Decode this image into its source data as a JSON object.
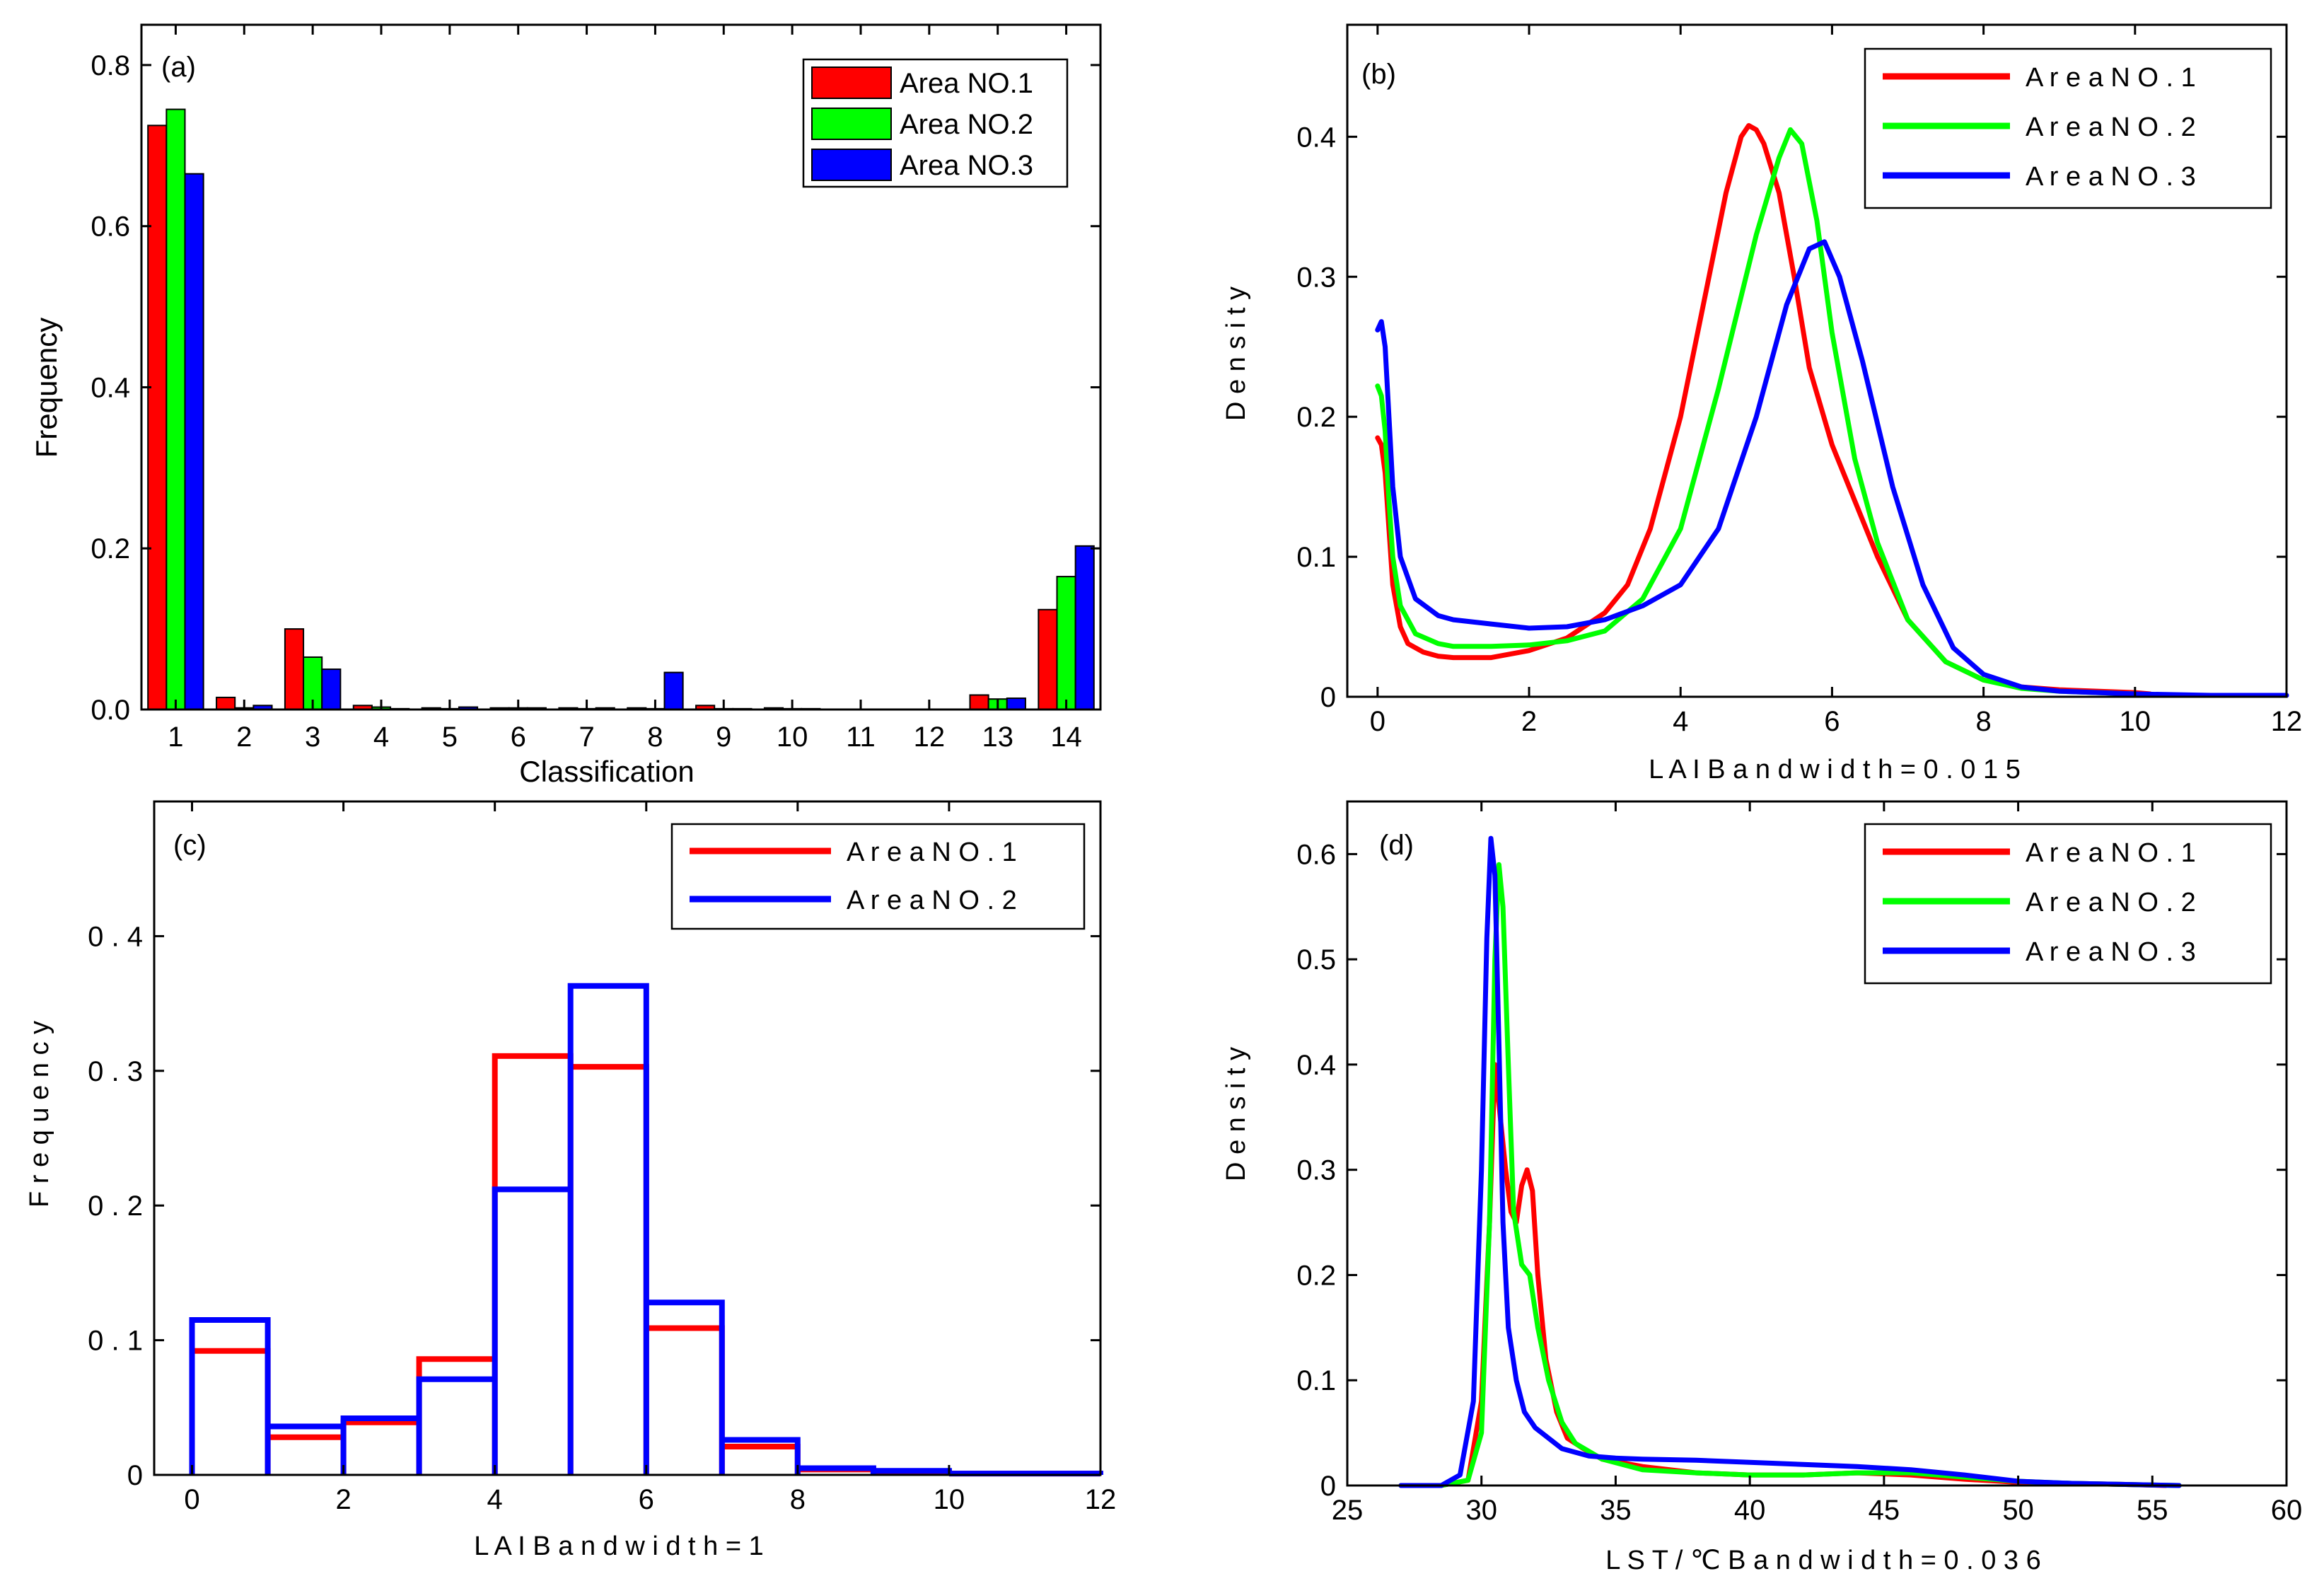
{
  "chart_data": [
    {
      "panel_label": "(a)",
      "type": "bar",
      "xlabel": "Classification",
      "ylabel": "Frequency",
      "categories": [
        "1",
        "2",
        "3",
        "4",
        "5",
        "6",
        "7",
        "8",
        "9",
        "10",
        "11",
        "12",
        "13",
        "14"
      ],
      "ylim": [
        0,
        0.85
      ],
      "yticks": [
        0.0,
        0.2,
        0.4,
        0.6,
        0.8
      ],
      "ytick_labels": [
        "0.0",
        "0.2",
        "0.4",
        "0.6",
        "0.8"
      ],
      "series": [
        {
          "name": "Area NO.1",
          "color": "#ff0000",
          "values": [
            0.725,
            0.015,
            0.1,
            0.005,
            0.002,
            0.002,
            0.002,
            0.002,
            0.005,
            0.002,
            0.0,
            0.0,
            0.018,
            0.124
          ]
        },
        {
          "name": "Area NO.2",
          "color": "#00ff00",
          "values": [
            0.745,
            0.002,
            0.065,
            0.003,
            0.001,
            0.002,
            0.001,
            0.001,
            0.001,
            0.001,
            0.0,
            0.0,
            0.013,
            0.165
          ]
        },
        {
          "name": "Area NO.3",
          "color": "#0000ff",
          "values": [
            0.665,
            0.005,
            0.05,
            0.001,
            0.003,
            0.002,
            0.002,
            0.046,
            0.001,
            0.001,
            0.0,
            0.0,
            0.014,
            0.203
          ]
        }
      ],
      "legend": "top-right"
    },
    {
      "panel_label": "(b)",
      "type": "line",
      "xlabel": "L A I  B a n d w i d t h = 0 . 0 1 5",
      "ylabel": "D e n s i t y",
      "xlim": [
        -0.4,
        12
      ],
      "ylim": [
        0,
        0.48
      ],
      "xticks": [
        0,
        2,
        4,
        6,
        8,
        10,
        12
      ],
      "yticks": [
        0,
        0.1,
        0.2,
        0.3,
        0.4
      ],
      "ytick_labels": [
        "0",
        "0.1",
        "0.2",
        "0.3",
        "0.4"
      ],
      "series": [
        {
          "name": "A r e a  N O . 1",
          "color": "#ff0000",
          "x": [
            0,
            0.05,
            0.1,
            0.15,
            0.2,
            0.3,
            0.4,
            0.6,
            0.8,
            1,
            1.5,
            2,
            2.5,
            3,
            3.3,
            3.6,
            4,
            4.3,
            4.6,
            4.8,
            4.9,
            5.0,
            5.1,
            5.3,
            5.5,
            5.7,
            6,
            6.3,
            6.6,
            7,
            7.5,
            8,
            8.5,
            9,
            10,
            10.2
          ],
          "y": [
            0.185,
            0.18,
            0.16,
            0.12,
            0.08,
            0.05,
            0.038,
            0.032,
            0.029,
            0.028,
            0.028,
            0.033,
            0.042,
            0.06,
            0.08,
            0.12,
            0.2,
            0.28,
            0.36,
            0.4,
            0.408,
            0.405,
            0.395,
            0.36,
            0.3,
            0.235,
            0.18,
            0.14,
            0.1,
            0.055,
            0.025,
            0.012,
            0.007,
            0.005,
            0.003,
            0.002
          ]
        },
        {
          "name": "A r e a  N O . 2",
          "color": "#00ff00",
          "x": [
            0,
            0.05,
            0.1,
            0.15,
            0.2,
            0.3,
            0.5,
            0.8,
            1,
            1.5,
            2,
            2.5,
            3,
            3.5,
            4,
            4.5,
            5,
            5.3,
            5.45,
            5.6,
            5.8,
            6,
            6.3,
            6.6,
            7,
            7.5,
            8,
            8.5,
            9,
            10
          ],
          "y": [
            0.222,
            0.215,
            0.19,
            0.14,
            0.1,
            0.065,
            0.045,
            0.038,
            0.036,
            0.036,
            0.037,
            0.04,
            0.047,
            0.07,
            0.12,
            0.22,
            0.33,
            0.385,
            0.405,
            0.395,
            0.34,
            0.26,
            0.17,
            0.11,
            0.055,
            0.025,
            0.012,
            0.006,
            0.004,
            0.002
          ]
        },
        {
          "name": "A r e a  N O . 3",
          "color": "#0000ff",
          "x": [
            0,
            0.05,
            0.1,
            0.15,
            0.2,
            0.3,
            0.5,
            0.8,
            1,
            1.5,
            2,
            2.5,
            3,
            3.5,
            4,
            4.5,
            5,
            5.4,
            5.7,
            5.9,
            6.1,
            6.4,
            6.8,
            7.2,
            7.6,
            8,
            8.5,
            9,
            10,
            11,
            12
          ],
          "y": [
            0.262,
            0.268,
            0.25,
            0.2,
            0.15,
            0.1,
            0.07,
            0.058,
            0.055,
            0.052,
            0.049,
            0.05,
            0.055,
            0.065,
            0.08,
            0.12,
            0.2,
            0.28,
            0.32,
            0.325,
            0.3,
            0.24,
            0.15,
            0.08,
            0.035,
            0.016,
            0.007,
            0.004,
            0.002,
            0.001,
            0.001
          ]
        }
      ],
      "legend": "top-right"
    },
    {
      "panel_label": "(c)",
      "type": "histogram",
      "xlabel": "L A I  B a n d w i d t h = 1",
      "ylabel": "F r e q u e n c y",
      "xlim": [
        -0.5,
        12
      ],
      "ylim": [
        0,
        0.5
      ],
      "xticks": [
        0,
        2,
        4,
        6,
        8,
        10,
        12
      ],
      "yticks": [
        0,
        0.1,
        0.2,
        0.3,
        0.4
      ],
      "ytick_labels": [
        "0",
        "0 . 1",
        "0 . 2",
        "0 . 3",
        "0 . 4"
      ],
      "bin_edges": [
        0,
        1,
        2,
        3,
        4,
        5,
        6,
        7,
        8,
        9,
        10,
        11,
        12
      ],
      "series": [
        {
          "name": "A r e a  N O . 1",
          "color": "#ff0000",
          "values": [
            0.092,
            0.028,
            0.039,
            0.086,
            0.311,
            0.303,
            0.109,
            0.021,
            0.004,
            0.002,
            0.001,
            0.001
          ]
        },
        {
          "name": "A r e a  N O . 2",
          "color": "#0000ff",
          "values": [
            0.115,
            0.036,
            0.042,
            0.071,
            0.212,
            0.363,
            0.128,
            0.026,
            0.005,
            0.003,
            0.001,
            0.001
          ]
        }
      ],
      "legend": "top-right"
    },
    {
      "panel_label": "(d)",
      "type": "line",
      "xlabel": "L S T / ℃  B a n d w i d t h = 0 . 0 3 6",
      "ylabel": "D e n s i t y",
      "xlim": [
        25,
        60
      ],
      "ylim": [
        0,
        0.65
      ],
      "xticks": [
        25,
        30,
        35,
        40,
        45,
        50,
        55,
        60
      ],
      "yticks": [
        0,
        0.1,
        0.2,
        0.3,
        0.4,
        0.5,
        0.6
      ],
      "ytick_labels": [
        "0",
        "0.1",
        "0.2",
        "0.3",
        "0.4",
        "0.5",
        "0.6"
      ],
      "series": [
        {
          "name": "A r e a  N O . 1",
          "color": "#ff0000",
          "x": [
            27,
            28.5,
            29.5,
            30,
            30.3,
            30.5,
            30.7,
            30.9,
            31.1,
            31.3,
            31.5,
            31.7,
            31.9,
            32.1,
            32.4,
            32.8,
            33.2,
            33.8,
            34.5,
            36,
            38,
            40,
            42,
            44,
            46,
            48,
            50,
            52,
            54,
            55.5
          ],
          "y": [
            0.0,
            0.0,
            0.005,
            0.08,
            0.25,
            0.4,
            0.35,
            0.3,
            0.26,
            0.25,
            0.285,
            0.3,
            0.28,
            0.2,
            0.12,
            0.07,
            0.045,
            0.035,
            0.025,
            0.018,
            0.012,
            0.01,
            0.01,
            0.012,
            0.01,
            0.006,
            0.003,
            0.002,
            0.001,
            0.0
          ]
        },
        {
          "name": "A r e a  N O . 2",
          "color": "#00ff00",
          "x": [
            27,
            28.5,
            29.5,
            30,
            30.3,
            30.5,
            30.65,
            30.8,
            31,
            31.2,
            31.5,
            31.8,
            32.1,
            32.5,
            33,
            33.5,
            34.5,
            36,
            38,
            40,
            42,
            44,
            46,
            48,
            50,
            52,
            54,
            56
          ],
          "y": [
            0.0,
            0.0,
            0.005,
            0.05,
            0.25,
            0.5,
            0.59,
            0.55,
            0.4,
            0.26,
            0.21,
            0.2,
            0.15,
            0.1,
            0.06,
            0.04,
            0.025,
            0.015,
            0.012,
            0.01,
            0.01,
            0.012,
            0.012,
            0.008,
            0.004,
            0.002,
            0.001,
            0.0
          ]
        },
        {
          "name": "A r e a  N O . 3",
          "color": "#0000ff",
          "x": [
            27,
            28.5,
            29.2,
            29.7,
            30,
            30.2,
            30.35,
            30.5,
            30.65,
            30.8,
            31,
            31.3,
            31.6,
            32,
            32.5,
            33,
            34,
            35,
            36,
            38,
            40,
            42,
            44,
            46,
            48,
            50,
            52,
            54,
            56
          ],
          "y": [
            0.0,
            0.0,
            0.01,
            0.08,
            0.3,
            0.52,
            0.615,
            0.58,
            0.42,
            0.25,
            0.15,
            0.1,
            0.07,
            0.055,
            0.045,
            0.035,
            0.028,
            0.026,
            0.025,
            0.024,
            0.022,
            0.02,
            0.018,
            0.015,
            0.01,
            0.004,
            0.002,
            0.001,
            0.0
          ]
        }
      ],
      "legend": "top-right"
    }
  ]
}
